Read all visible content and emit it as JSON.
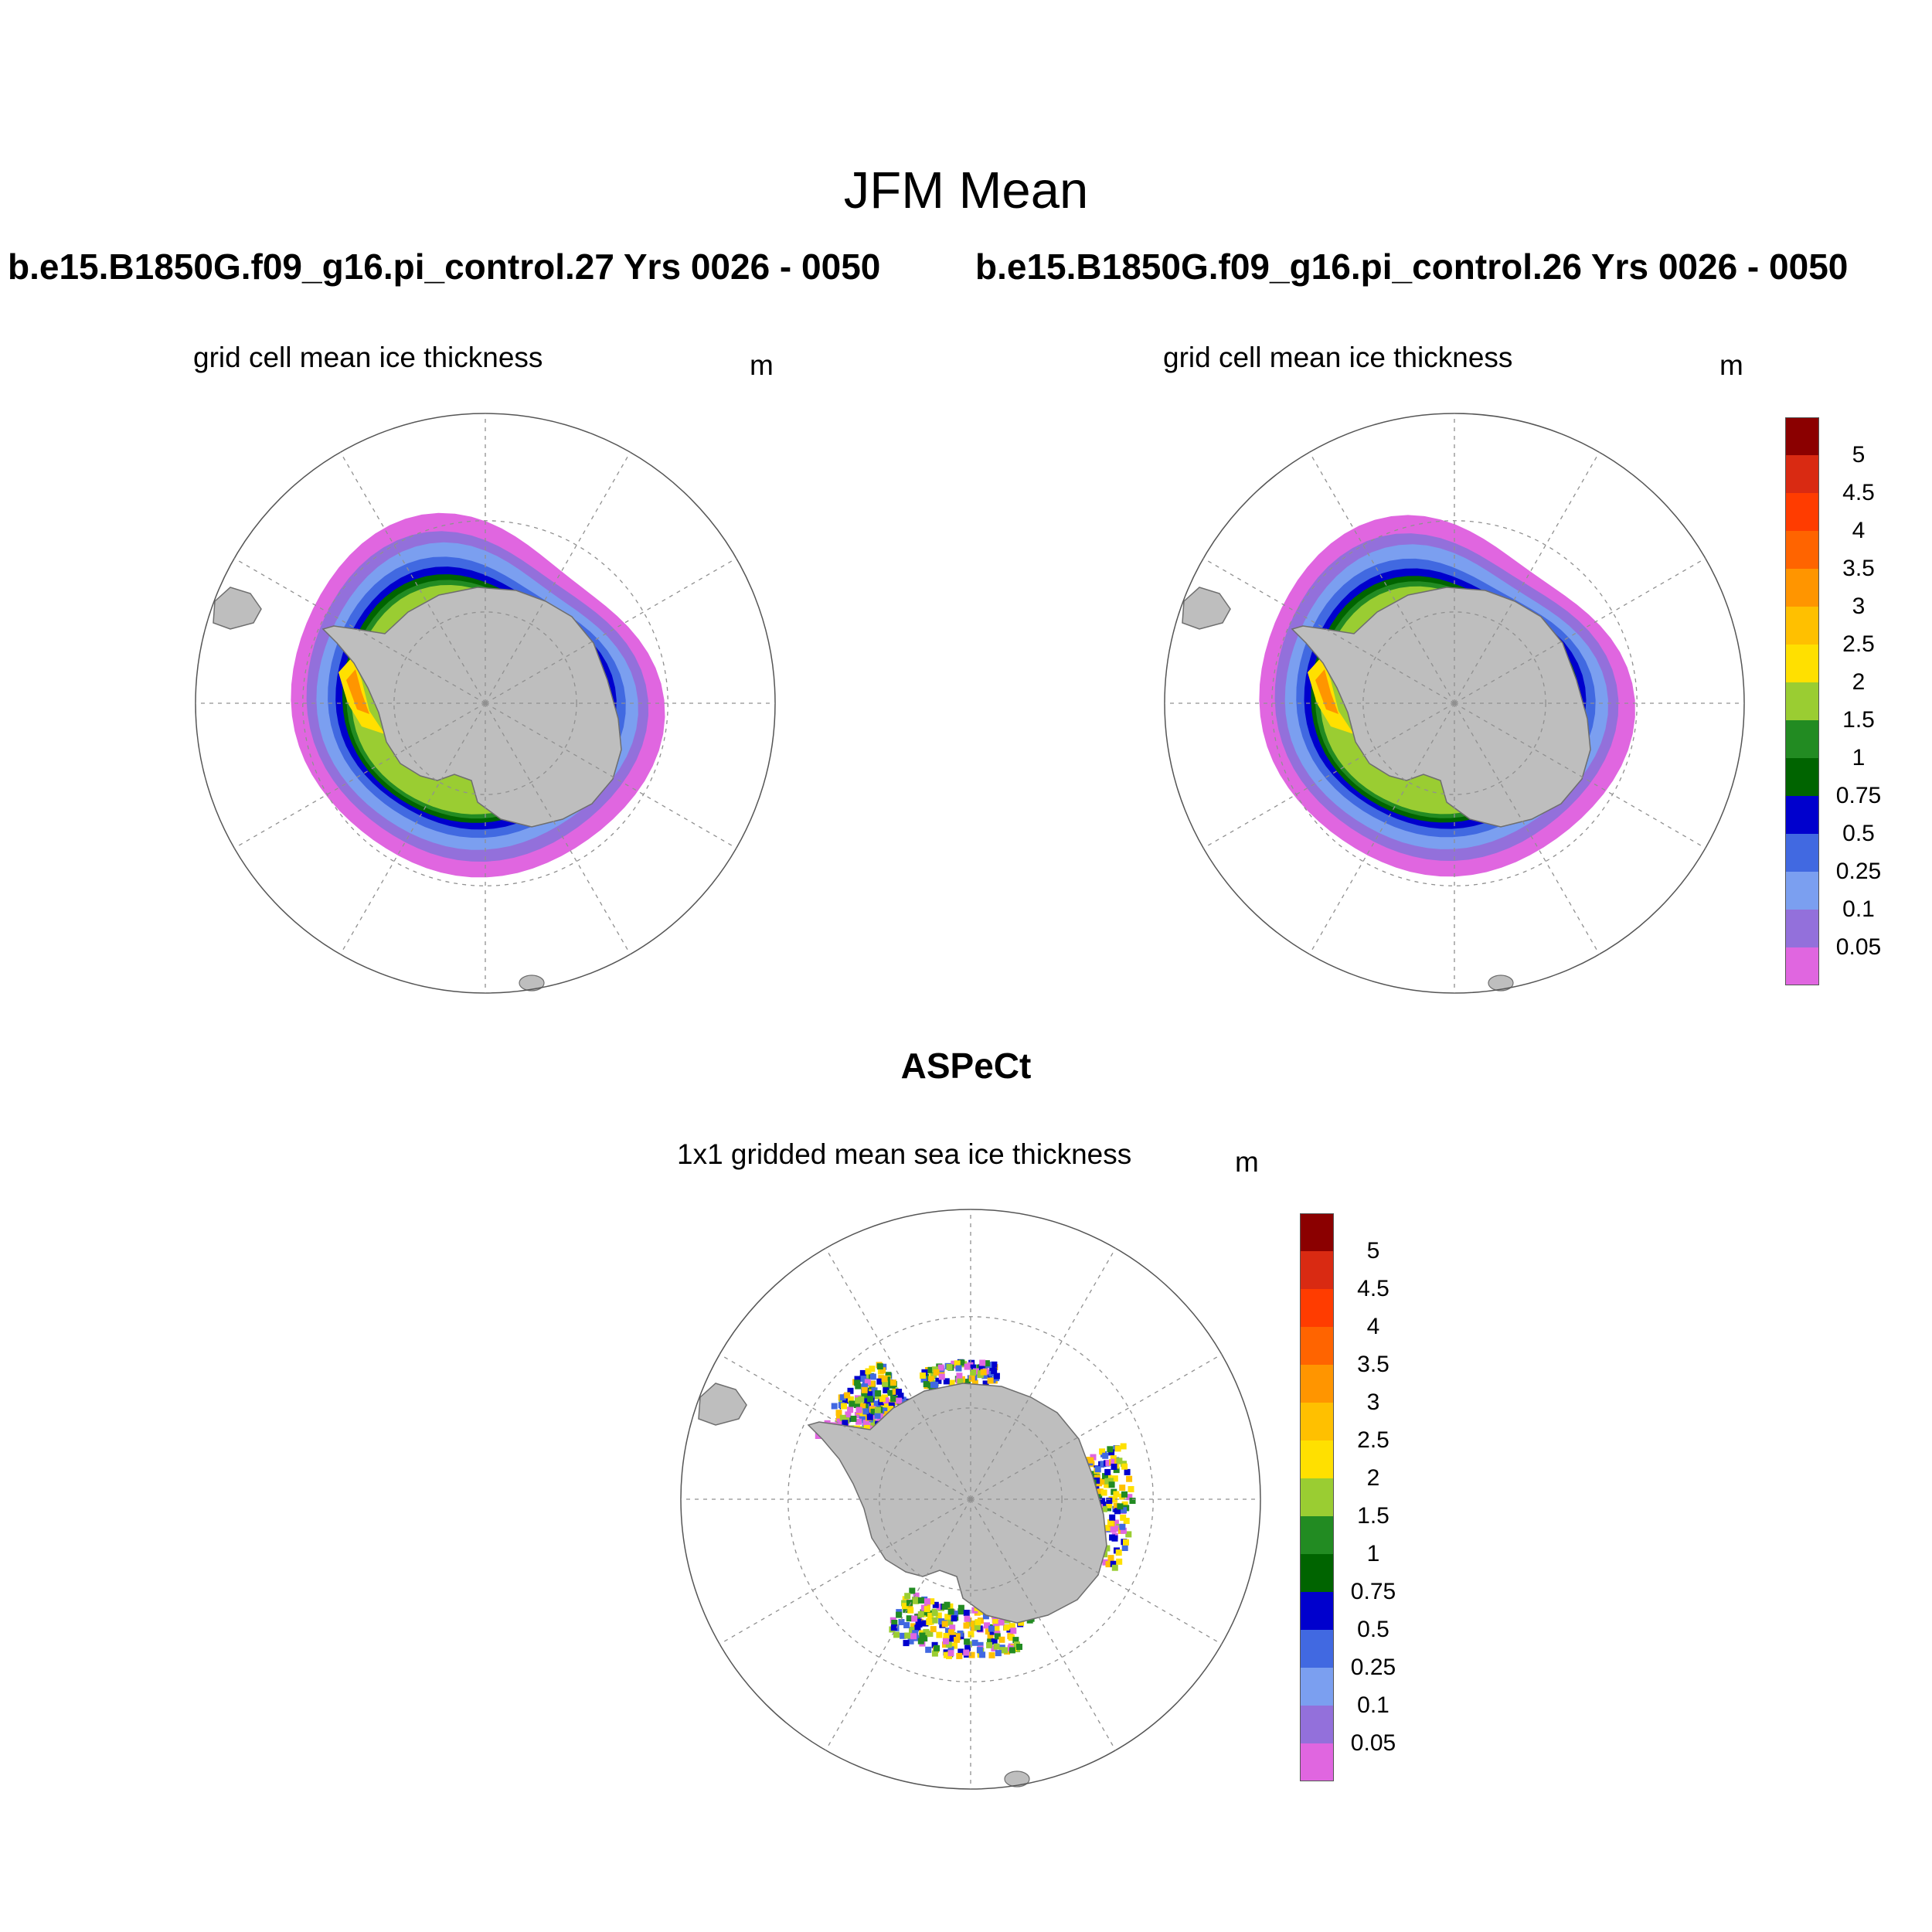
{
  "figure": {
    "title": "JFM Mean",
    "observation_title": "ASPeCt"
  },
  "panels": [
    {
      "run_title": "b.e15.B1850G.f09_g16.pi_control.27  Yrs 0026 - 0050",
      "subtitle": "grid cell mean ice thickness",
      "unit": "m"
    },
    {
      "run_title": "b.e15.B1850G.f09_g16.pi_control.26  Yrs 0026 - 0050",
      "subtitle": "grid cell mean ice thickness",
      "unit": "m"
    },
    {
      "subtitle": "1x1 gridded mean sea ice thickness",
      "unit": "m"
    }
  ],
  "colorbar": {
    "labels": [
      "5",
      "4.5",
      "4",
      "3.5",
      "3",
      "2.5",
      "2",
      "1.5",
      "1",
      "0.75",
      "0.5",
      "0.25",
      "0.1",
      "0.05"
    ],
    "colors_top_to_bottom": [
      "#8b0000",
      "#d92a12",
      "#ff3c00",
      "#ff6400",
      "#ff9500",
      "#ffc000",
      "#ffe000",
      "#9acd32",
      "#228b22",
      "#006400",
      "#0000cd",
      "#4169e1",
      "#7b9ff0",
      "#9370db",
      "#e066e0"
    ]
  },
  "colors": {
    "land": "#bebebe",
    "coastline": "#6e6e6e",
    "grid": "#909090"
  }
}
